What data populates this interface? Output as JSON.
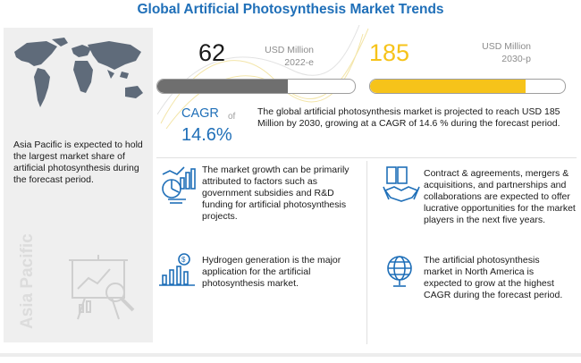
{
  "title": "Global Artificial Photosynthesis Market Trends",
  "left_panel": {
    "region_text": "Asia Pacific is expected to hold the largest market share of artificial photosynthesis during the forecast period.",
    "region_label": "Asia Pacific",
    "icons": [
      "world-map-icon",
      "analytics-board-icon"
    ]
  },
  "metrics": [
    {
      "value": "62",
      "unit": "USD Million",
      "year": "2022-e",
      "bar_fraction": 0.66,
      "color": "#6f6f6f"
    },
    {
      "value": "185",
      "unit": "USD Million",
      "year": "2030-p",
      "bar_fraction": 0.8,
      "color": "#f6c31a"
    }
  ],
  "cagr": {
    "label": "CAGR",
    "of": "of",
    "value": "14.6%"
  },
  "summary": "The global artificial photosynthesis market is projected to reach USD 185 Million by 2030, growing at a CAGR of 14.6 % during the forecast period.",
  "facts": [
    {
      "text": "The market growth can be primarily attributed to factors such as government subsidies and R&D funding for artificial photosynthesis projects.",
      "icon": "growth-chart-icon"
    },
    {
      "text": "Contract & agreements, mergers & acquisitions, and partnerships and collaborations are expected to offer lucrative opportunities for the market players in the next five years.",
      "icon": "handshake-icon"
    },
    {
      "text": "Hydrogen generation is the major application for the artificial photosynthesis market.",
      "icon": "dollar-bar-chart-icon"
    },
    {
      "text": "The artificial photosynthesis market in North America is expected to grow at the highest CAGR during the forecast period.",
      "icon": "globe-icon"
    }
  ],
  "colors": {
    "title": "#1f6fb8",
    "accent": "#f6c31a",
    "dark_bar": "#6f6f6f",
    "panel": "#efefef"
  }
}
